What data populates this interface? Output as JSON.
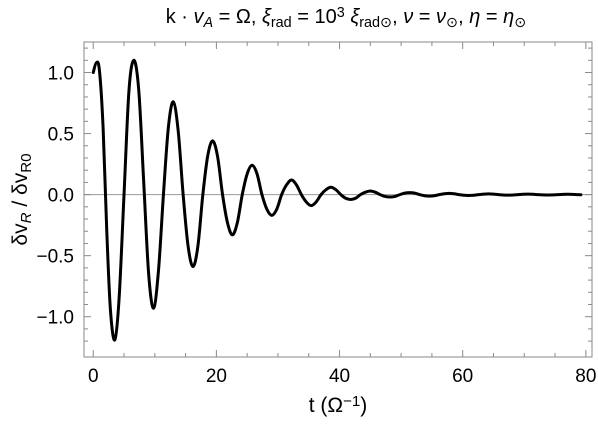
{
  "chart_data": {
    "type": "line",
    "title": {
      "plain": "k · vA = Ω,  ξrad = 10^3 ξrad⊙,  ν = ν⊙,  η = η⊙",
      "parts": [
        {
          "t": "k · "
        },
        {
          "t": "v",
          "i": true
        },
        {
          "t": "A",
          "i": true,
          "sub": true
        },
        {
          "t": " = Ω,  "
        },
        {
          "t": "ξ",
          "i": true
        },
        {
          "t": "rad",
          "sub": true
        },
        {
          "t": " = 10"
        },
        {
          "t": "3",
          "sup": true
        },
        {
          "t": " "
        },
        {
          "t": "ξ",
          "i": true
        },
        {
          "t": "rad⊙",
          "sub": true
        },
        {
          "t": ",  "
        },
        {
          "t": "ν",
          "i": true
        },
        {
          "t": " = "
        },
        {
          "t": "ν",
          "i": true
        },
        {
          "t": "⊙",
          "sub": true
        },
        {
          "t": ",  "
        },
        {
          "t": "η",
          "i": true
        },
        {
          "t": " = "
        },
        {
          "t": "η",
          "i": true
        },
        {
          "t": "⊙",
          "sub": true
        }
      ]
    },
    "xlabel": {
      "plain": "t (Ω^−1)",
      "parts": [
        {
          "t": "t (Ω"
        },
        {
          "t": "−1",
          "sup": true
        },
        {
          "t": ")"
        }
      ]
    },
    "ylabel": {
      "plain": "δvR / δvR0",
      "parts": [
        {
          "t": "δv"
        },
        {
          "t": "R",
          "i": true,
          "sub": true
        },
        {
          "t": " / δv"
        },
        {
          "t": "R0",
          "sub": true
        }
      ]
    },
    "xlim": [
      -1.5,
      81
    ],
    "ylim": [
      -1.33,
      1.25
    ],
    "xticks": [
      0,
      20,
      40,
      60,
      80
    ],
    "xtick_labels": [
      "0",
      "20",
      "40",
      "60",
      "80"
    ],
    "yticks": [
      -1.0,
      -0.5,
      0.0,
      0.5,
      1.0
    ],
    "ytick_labels": [
      "−1.0",
      "−0.5",
      "0.0",
      "0.5",
      "1.0"
    ],
    "grid": false,
    "zero_line": true,
    "series": [
      {
        "color": "#000000",
        "points": [
          [
            0.0,
            1.0
          ],
          [
            0.5,
            1.08
          ],
          [
            1.0,
            1.02
          ],
          [
            1.6,
            0.55
          ],
          [
            2.2,
            -0.3
          ],
          [
            2.8,
            -0.95
          ],
          [
            3.5,
            -1.19
          ],
          [
            4.2,
            -0.85
          ],
          [
            5.0,
            0.0
          ],
          [
            5.8,
            0.85
          ],
          [
            6.6,
            1.1
          ],
          [
            7.4,
            0.85
          ],
          [
            8.2,
            0.1
          ],
          [
            9.0,
            -0.65
          ],
          [
            9.8,
            -0.93
          ],
          [
            10.6,
            -0.62
          ],
          [
            11.4,
            0.0
          ],
          [
            12.2,
            0.55
          ],
          [
            13.0,
            0.76
          ],
          [
            13.8,
            0.52
          ],
          [
            14.6,
            0.0
          ],
          [
            15.4,
            -0.42
          ],
          [
            16.2,
            -0.59
          ],
          [
            17.0,
            -0.42
          ],
          [
            17.8,
            0.0
          ],
          [
            18.6,
            0.32
          ],
          [
            19.4,
            0.44
          ],
          [
            20.2,
            0.31
          ],
          [
            21.0,
            0.0
          ],
          [
            21.8,
            -0.23
          ],
          [
            22.6,
            -0.33
          ],
          [
            23.4,
            -0.23
          ],
          [
            24.2,
            0.0
          ],
          [
            25.0,
            0.17
          ],
          [
            25.8,
            0.24
          ],
          [
            26.6,
            0.17
          ],
          [
            27.4,
            0.0
          ],
          [
            28.2,
            -0.12
          ],
          [
            29.0,
            -0.17
          ],
          [
            29.8,
            -0.12
          ],
          [
            30.6,
            0.0
          ],
          [
            31.4,
            0.08
          ],
          [
            32.2,
            0.12
          ],
          [
            33.0,
            0.08
          ],
          [
            33.8,
            0.0
          ],
          [
            34.6,
            -0.06
          ],
          [
            35.4,
            -0.09
          ],
          [
            36.2,
            -0.06
          ],
          [
            37.0,
            0.0
          ],
          [
            37.8,
            0.04
          ],
          [
            38.6,
            0.06
          ],
          [
            39.4,
            0.04
          ],
          [
            40.2,
            0.0
          ],
          [
            41.0,
            -0.03
          ],
          [
            41.8,
            -0.04
          ],
          [
            42.6,
            -0.03
          ],
          [
            43.4,
            0.0
          ],
          [
            44.2,
            0.02
          ],
          [
            45.0,
            0.03
          ],
          [
            45.8,
            0.02
          ],
          [
            46.6,
            0.0
          ],
          [
            47.4,
            -0.015
          ],
          [
            48.2,
            -0.02
          ],
          [
            49.0,
            -0.015
          ],
          [
            49.8,
            0.0
          ],
          [
            50.6,
            0.012
          ],
          [
            51.4,
            0.016
          ],
          [
            52.2,
            0.012
          ],
          [
            53.0,
            0.0
          ],
          [
            53.8,
            -0.009
          ],
          [
            54.6,
            -0.012
          ],
          [
            55.4,
            -0.009
          ],
          [
            56.2,
            0.0
          ],
          [
            57.0,
            0.007
          ],
          [
            57.8,
            0.01
          ],
          [
            58.6,
            0.007
          ],
          [
            59.4,
            0.0
          ],
          [
            60.2,
            -0.005
          ],
          [
            61.0,
            -0.007
          ],
          [
            61.8,
            -0.005
          ],
          [
            62.6,
            0.0
          ],
          [
            63.4,
            0.004
          ],
          [
            64.2,
            0.006
          ],
          [
            65.0,
            0.004
          ],
          [
            65.8,
            0.0
          ],
          [
            66.6,
            -0.003
          ],
          [
            67.4,
            -0.004
          ],
          [
            68.2,
            -0.003
          ],
          [
            69.0,
            0.0
          ],
          [
            69.8,
            0.003
          ],
          [
            70.6,
            0.004
          ],
          [
            71.4,
            0.003
          ],
          [
            72.2,
            0.0
          ],
          [
            73.0,
            -0.002
          ],
          [
            73.8,
            -0.003
          ],
          [
            74.6,
            -0.002
          ],
          [
            75.4,
            0.0
          ],
          [
            76.2,
            0.002
          ],
          [
            77.0,
            0.003
          ],
          [
            77.8,
            0.002
          ],
          [
            78.6,
            0.0
          ],
          [
            79.2,
            -0.001
          ]
        ]
      }
    ]
  }
}
